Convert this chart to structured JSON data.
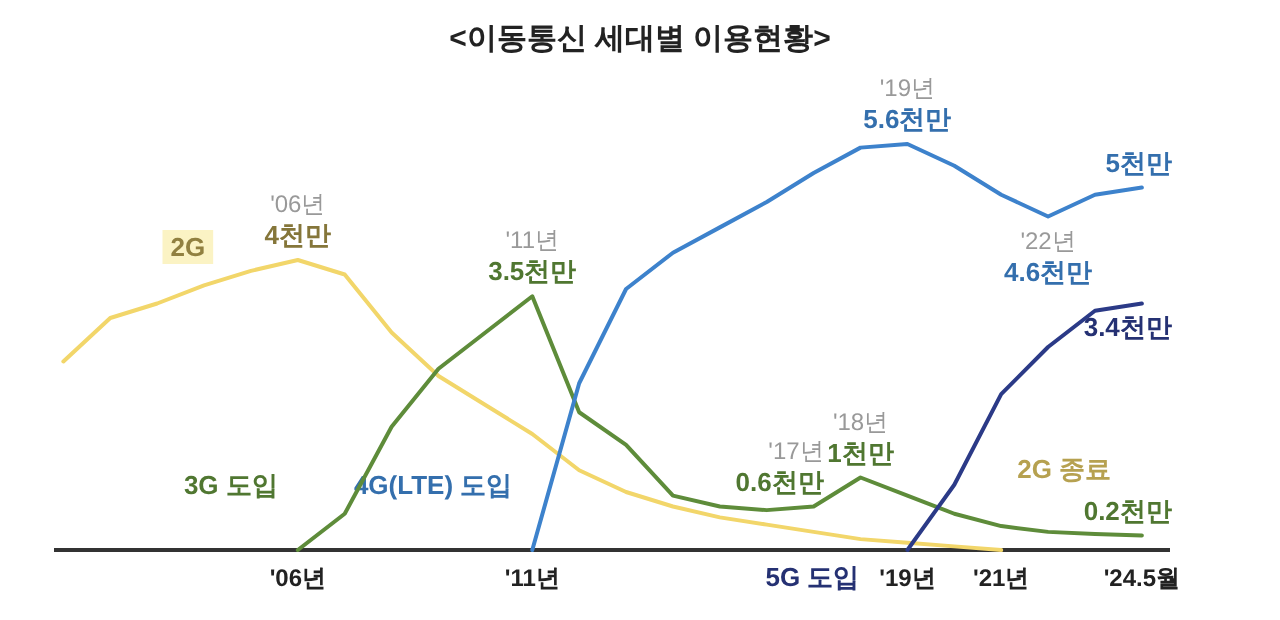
{
  "chart_data": {
    "type": "line",
    "title": "<이동통신 세대별 이용현황>",
    "categories": [
      null,
      null,
      null,
      null,
      null,
      "'06년",
      null,
      null,
      null,
      null,
      "'11년",
      null,
      null,
      null,
      null,
      null,
      null,
      null,
      "'19년",
      null,
      "'21년",
      null,
      null,
      "'24.5월"
    ],
    "grid": false,
    "marker": "none",
    "line_style": "solid",
    "series": [
      {
        "name": "2G",
        "color": "#f2d66a",
        "values": [
          2.6,
          3.2,
          3.4,
          3.65,
          3.85,
          4.0,
          3.8,
          3.0,
          2.4,
          2.0,
          1.6,
          1.1,
          0.8,
          0.6,
          0.45,
          0.35,
          0.25,
          0.15,
          0.1,
          0.05,
          0,
          null,
          null,
          null
        ],
        "value_labels": [
          null,
          null,
          null,
          null,
          null,
          "'06년\n4천만",
          null,
          null,
          null,
          null,
          null,
          null,
          null,
          null,
          null,
          null,
          null,
          null,
          null,
          null,
          null,
          null,
          null,
          null
        ]
      },
      {
        "color": "#5e8c3a",
        "values": [
          null,
          null,
          null,
          null,
          null,
          0,
          0.5,
          1.7,
          2.5,
          3.0,
          3.5,
          1.9,
          1.45,
          0.75,
          0.6,
          0.55,
          0.6,
          1.0,
          0.75,
          0.5,
          0.33,
          0.25,
          0.22,
          0.2
        ],
        "value_labels": [
          null,
          null,
          null,
          null,
          null,
          null,
          null,
          null,
          null,
          null,
          "'11년\n3.5천만",
          null,
          null,
          null,
          null,
          null,
          "'17년\n0.6천만",
          "'18년\n1천만",
          null,
          null,
          null,
          null,
          null,
          "0.2천만"
        ]
      },
      {
        "color": "#3d82cc",
        "values": [
          null,
          null,
          null,
          null,
          null,
          null,
          null,
          null,
          null,
          null,
          0,
          2.3,
          3.6,
          4.1,
          4.45,
          4.8,
          5.2,
          5.55,
          5.6,
          5.3,
          4.9,
          4.6,
          4.9,
          5.0
        ],
        "value_labels": [
          null,
          null,
          null,
          null,
          null,
          null,
          null,
          null,
          null,
          null,
          null,
          null,
          null,
          null,
          null,
          null,
          null,
          null,
          "'19년\n5.6천만",
          null,
          null,
          "'22년\n4.6천만",
          null,
          "5천만"
        ]
      },
      {
        "color": "#2b3a87",
        "values": [
          null,
          null,
          null,
          null,
          null,
          null,
          null,
          null,
          null,
          null,
          null,
          null,
          null,
          null,
          null,
          null,
          null,
          null,
          0,
          0.9,
          2.15,
          2.8,
          3.3,
          3.4
        ],
        "value_labels": [
          null,
          null,
          null,
          null,
          null,
          null,
          null,
          null,
          null,
          null,
          null,
          null,
          null,
          null,
          null,
          null,
          null,
          null,
          null,
          null,
          null,
          null,
          null,
          "3.4천만"
        ]
      }
    ],
    "annotations": [
      {
        "text": "3G 도입",
        "x": "'06년",
        "y": 0
      },
      {
        "text": "4G(LTE) 도입",
        "x": "'11년",
        "y": 0
      },
      {
        "text": "5G 도입",
        "x": "'19년",
        "y": 0
      },
      {
        "text": "2G 종료",
        "x": "'21년",
        "y": 0
      }
    ]
  }
}
